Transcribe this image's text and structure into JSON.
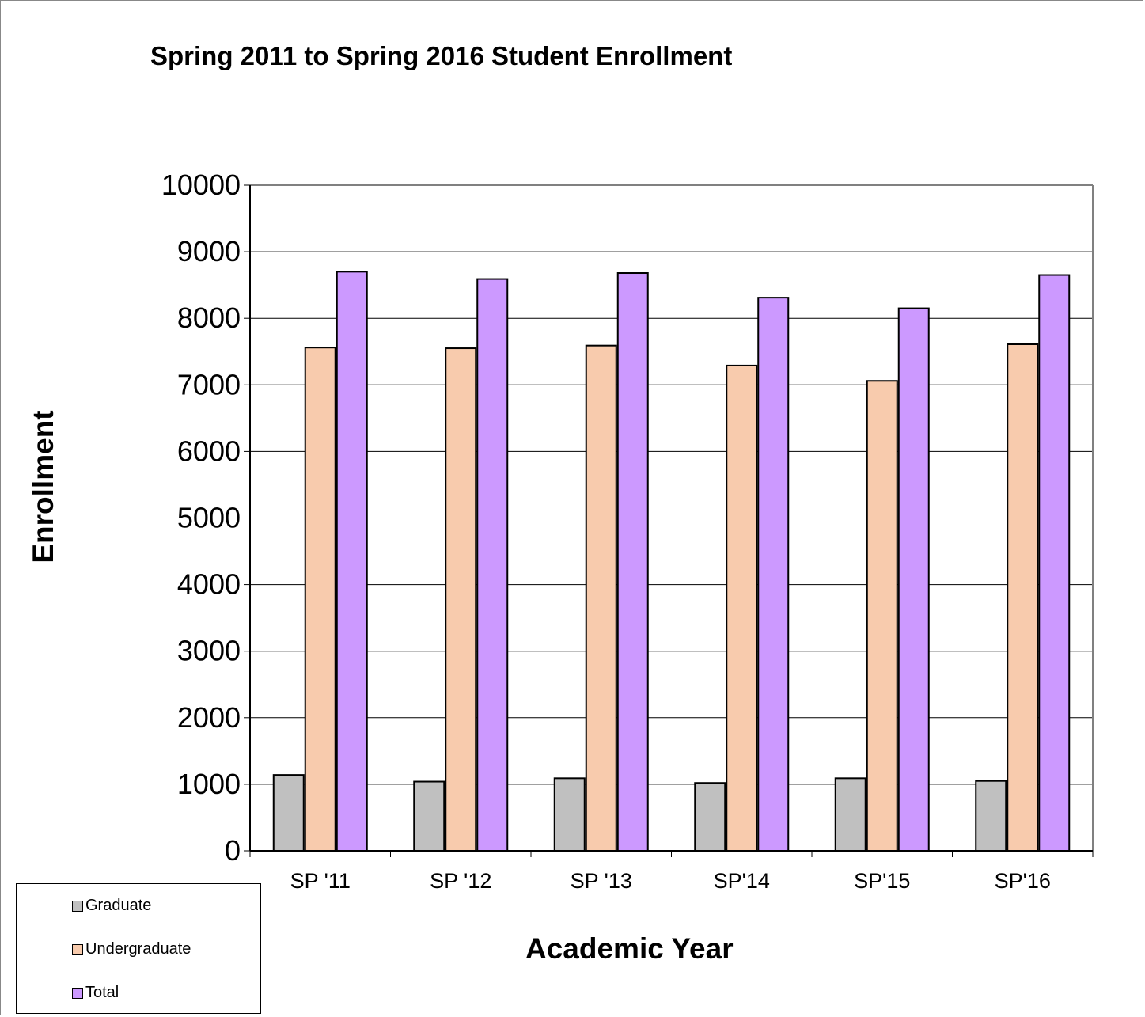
{
  "chart_data": {
    "type": "bar",
    "title": "Spring 2011 to Spring 2016 Student Enrollment",
    "xlabel": "Academic Year",
    "ylabel": "Enrollment",
    "categories": [
      "SP '11",
      "SP '12",
      "SP '13",
      "SP'14",
      "SP'15",
      "SP'16"
    ],
    "ylim": [
      0,
      10000
    ],
    "yticks": [
      0,
      1000,
      2000,
      3000,
      4000,
      5000,
      6000,
      7000,
      8000,
      9000,
      10000
    ],
    "grid": true,
    "legend_position": "bottom-left",
    "series": [
      {
        "name": "Graduate",
        "color": "#c0c0c0",
        "values": [
          1140,
          1040,
          1090,
          1020,
          1090,
          1050
        ]
      },
      {
        "name": "Undergraduate",
        "color": "#f8cbad",
        "values": [
          7560,
          7550,
          7590,
          7290,
          7060,
          7610
        ]
      },
      {
        "name": "Total",
        "color": "#cc99ff",
        "values": [
          8700,
          8590,
          8680,
          8310,
          8150,
          8650
        ]
      }
    ]
  }
}
